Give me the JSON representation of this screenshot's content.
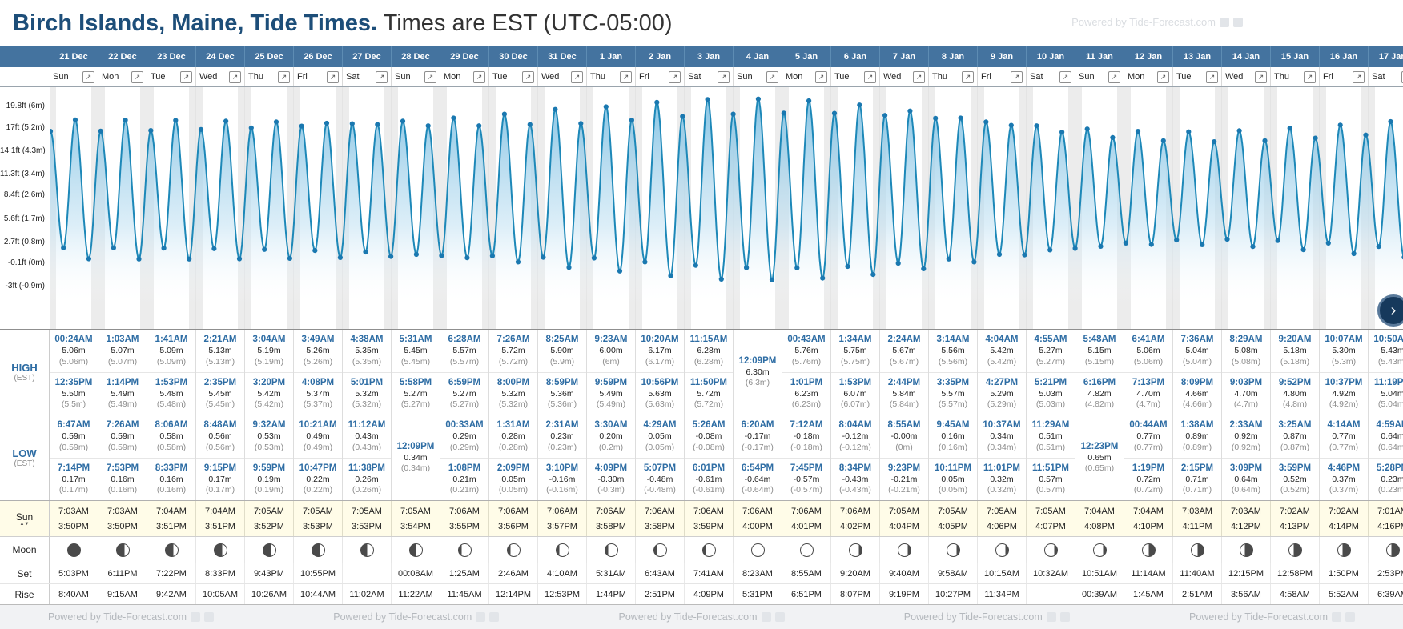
{
  "header": {
    "title_bold": "Birch Islands, Maine, Tide Times.",
    "title_rest": " Times are EST (UTC-05:00)",
    "watermark": "Powered by Tide-Forecast.com"
  },
  "controls": {
    "expand": "↗",
    "next": "›"
  },
  "row_labels": {
    "high": "HIGH",
    "high_tz": "(EST)",
    "low": "LOW",
    "low_tz": "(EST)",
    "sun": "Sun",
    "sun_arrows": "▲▼",
    "moon": "Moon",
    "set": "Set",
    "rise": "Rise"
  },
  "footer": {
    "text": "Powered by Tide-Forecast.com",
    "repeat": 5
  },
  "chart": {
    "type": "area",
    "unit": "m",
    "y_labels": [
      {
        "text": "19.8ft (6m)",
        "v": 6
      },
      {
        "text": "17ft (5.2m)",
        "v": 5.2
      },
      {
        "text": "14.1ft (4.3m)",
        "v": 4.3
      },
      {
        "text": "11.3ft (3.4m)",
        "v": 3.4
      },
      {
        "text": "8.4ft (2.6m)",
        "v": 2.6
      },
      {
        "text": "5.6ft (1.7m)",
        "v": 1.7
      },
      {
        "text": "2.7ft (0.8m)",
        "v": 0.8
      },
      {
        "text": "-0.1ft (0m)",
        "v": 0
      },
      {
        "text": "-3ft (-0.9m)",
        "v": -0.9
      }
    ]
  },
  "days": [
    {
      "date": "21 Dec",
      "dow": "Sun",
      "highs": [
        {
          "t": "00:24AM",
          "v": 5.06
        },
        {
          "t": "12:35PM",
          "v": 5.5
        }
      ],
      "lows": [
        {
          "t": "6:47AM",
          "v": 0.59
        },
        {
          "t": "7:14PM",
          "v": 0.17
        }
      ],
      "sun": [
        "7:03AM",
        "3:50PM"
      ],
      "moon": "new",
      "set": "5:03PM",
      "rise": "8:40AM"
    },
    {
      "date": "22 Dec",
      "dow": "Mon",
      "highs": [
        {
          "t": "1:03AM",
          "v": 5.07
        },
        {
          "t": "1:14PM",
          "v": 5.49
        }
      ],
      "lows": [
        {
          "t": "7:26AM",
          "v": 0.59
        },
        {
          "t": "7:53PM",
          "v": 0.16
        }
      ],
      "sun": [
        "7:03AM",
        "3:50PM"
      ],
      "moon": "waxing-crescent",
      "set": "6:11PM",
      "rise": "9:15AM"
    },
    {
      "date": "23 Dec",
      "dow": "Tue",
      "highs": [
        {
          "t": "1:41AM",
          "v": 5.09
        },
        {
          "t": "1:53PM",
          "v": 5.48
        }
      ],
      "lows": [
        {
          "t": "8:06AM",
          "v": 0.58
        },
        {
          "t": "8:33PM",
          "v": 0.16
        }
      ],
      "sun": [
        "7:04AM",
        "3:51PM"
      ],
      "moon": "waxing-crescent",
      "set": "7:22PM",
      "rise": "9:42AM"
    },
    {
      "date": "24 Dec",
      "dow": "Wed",
      "highs": [
        {
          "t": "2:21AM",
          "v": 5.13
        },
        {
          "t": "2:35PM",
          "v": 5.45
        }
      ],
      "lows": [
        {
          "t": "8:48AM",
          "v": 0.56
        },
        {
          "t": "9:15PM",
          "v": 0.17
        }
      ],
      "sun": [
        "7:04AM",
        "3:51PM"
      ],
      "moon": "waxing-crescent",
      "set": "8:33PM",
      "rise": "10:05AM"
    },
    {
      "date": "25 Dec",
      "dow": "Thu",
      "highs": [
        {
          "t": "3:04AM",
          "v": 5.19
        },
        {
          "t": "3:20PM",
          "v": 5.42
        }
      ],
      "lows": [
        {
          "t": "9:32AM",
          "v": 0.53
        },
        {
          "t": "9:59PM",
          "v": 0.19
        }
      ],
      "sun": [
        "7:05AM",
        "3:52PM"
      ],
      "moon": "waxing-crescent",
      "set": "9:43PM",
      "rise": "10:26AM"
    },
    {
      "date": "26 Dec",
      "dow": "Fri",
      "highs": [
        {
          "t": "3:49AM",
          "v": 5.26
        },
        {
          "t": "4:08PM",
          "v": 5.37
        }
      ],
      "lows": [
        {
          "t": "10:21AM",
          "v": 0.49
        },
        {
          "t": "10:47PM",
          "v": 0.22
        }
      ],
      "sun": [
        "7:05AM",
        "3:53PM"
      ],
      "moon": "waxing-crescent",
      "set": "10:55PM",
      "rise": "10:44AM"
    },
    {
      "date": "27 Dec",
      "dow": "Sat",
      "highs": [
        {
          "t": "4:38AM",
          "v": 5.35
        },
        {
          "t": "5:01PM",
          "v": 5.32
        }
      ],
      "lows": [
        {
          "t": "11:12AM",
          "v": 0.43
        },
        {
          "t": "11:38PM",
          "v": 0.26
        }
      ],
      "sun": [
        "7:05AM",
        "3:53PM"
      ],
      "moon": "first-quarter",
      "set": "",
      "rise": "11:02AM"
    },
    {
      "date": "28 Dec",
      "dow": "Sun",
      "highs": [
        {
          "t": "5:31AM",
          "v": 5.45
        },
        {
          "t": "5:58PM",
          "v": 5.27
        }
      ],
      "lows": [
        {
          "t": "12:09PM",
          "v": 0.34
        }
      ],
      "sun": [
        "7:05AM",
        "3:54PM"
      ],
      "moon": "first-quarter",
      "set": "00:08AM",
      "rise": "11:22AM"
    },
    {
      "date": "29 Dec",
      "dow": "Mon",
      "highs": [
        {
          "t": "6:28AM",
          "v": 5.57
        },
        {
          "t": "6:59PM",
          "v": 5.27
        }
      ],
      "lows": [
        {
          "t": "00:33AM",
          "v": 0.29
        },
        {
          "t": "1:08PM",
          "v": 0.21
        }
      ],
      "sun": [
        "7:06AM",
        "3:55PM"
      ],
      "moon": "waxing-gibbous",
      "set": "1:25AM",
      "rise": "11:45AM"
    },
    {
      "date": "30 Dec",
      "dow": "Tue",
      "highs": [
        {
          "t": "7:26AM",
          "v": 5.72
        },
        {
          "t": "8:00PM",
          "v": 5.32
        }
      ],
      "lows": [
        {
          "t": "1:31AM",
          "v": 0.28
        },
        {
          "t": "2:09PM",
          "v": 0.05
        }
      ],
      "sun": [
        "7:06AM",
        "3:56PM"
      ],
      "moon": "waxing-gibbous",
      "set": "2:46AM",
      "rise": "12:14PM"
    },
    {
      "date": "31 Dec",
      "dow": "Wed",
      "highs": [
        {
          "t": "8:25AM",
          "v": 5.9
        },
        {
          "t": "8:59PM",
          "v": 5.36
        }
      ],
      "lows": [
        {
          "t": "2:31AM",
          "v": 0.23
        },
        {
          "t": "3:10PM",
          "v": -0.16
        }
      ],
      "sun": [
        "7:06AM",
        "3:57PM"
      ],
      "moon": "waxing-gibbous",
      "set": "4:10AM",
      "rise": "12:53PM"
    },
    {
      "date": "1 Jan",
      "dow": "Thu",
      "highs": [
        {
          "t": "9:23AM",
          "v": 6.0
        },
        {
          "t": "9:59PM",
          "v": 5.49
        }
      ],
      "lows": [
        {
          "t": "3:30AM",
          "v": 0.2
        },
        {
          "t": "4:09PM",
          "v": -0.3
        }
      ],
      "sun": [
        "7:06AM",
        "3:58PM"
      ],
      "moon": "waxing-gibbous",
      "set": "5:31AM",
      "rise": "1:44PM"
    },
    {
      "date": "2 Jan",
      "dow": "Fri",
      "highs": [
        {
          "t": "10:20AM",
          "v": 6.17
        },
        {
          "t": "10:56PM",
          "v": 5.63
        }
      ],
      "lows": [
        {
          "t": "4:29AM",
          "v": 0.05
        },
        {
          "t": "5:07PM",
          "v": -0.48
        }
      ],
      "sun": [
        "7:06AM",
        "3:58PM"
      ],
      "moon": "waxing-gibbous",
      "set": "6:43AM",
      "rise": "2:51PM"
    },
    {
      "date": "3 Jan",
      "dow": "Sat",
      "highs": [
        {
          "t": "11:15AM",
          "v": 6.28
        },
        {
          "t": "11:50PM",
          "v": 5.72
        }
      ],
      "lows": [
        {
          "t": "5:26AM",
          "v": -0.08
        },
        {
          "t": "6:01PM",
          "v": -0.61
        }
      ],
      "sun": [
        "7:06AM",
        "3:59PM"
      ],
      "moon": "waxing-gibbous",
      "set": "7:41AM",
      "rise": "4:09PM"
    },
    {
      "date": "4 Jan",
      "dow": "Sun",
      "highs": [
        {
          "t": "12:09PM",
          "v": 6.3
        }
      ],
      "lows": [
        {
          "t": "6:20AM",
          "v": -0.17
        },
        {
          "t": "6:54PM",
          "v": -0.64
        }
      ],
      "sun": [
        "7:06AM",
        "4:00PM"
      ],
      "moon": "full",
      "set": "8:23AM",
      "rise": "5:31PM"
    },
    {
      "date": "5 Jan",
      "dow": "Mon",
      "highs": [
        {
          "t": "00:43AM",
          "v": 5.76
        },
        {
          "t": "1:01PM",
          "v": 6.23
        }
      ],
      "lows": [
        {
          "t": "7:12AM",
          "v": -0.18
        },
        {
          "t": "7:45PM",
          "v": -0.57
        }
      ],
      "sun": [
        "7:06AM",
        "4:01PM"
      ],
      "moon": "full",
      "set": "8:55AM",
      "rise": "6:51PM"
    },
    {
      "date": "6 Jan",
      "dow": "Tue",
      "highs": [
        {
          "t": "1:34AM",
          "v": 5.75
        },
        {
          "t": "1:53PM",
          "v": 6.07
        }
      ],
      "lows": [
        {
          "t": "8:04AM",
          "v": -0.12
        },
        {
          "t": "8:34PM",
          "v": -0.43
        }
      ],
      "sun": [
        "7:06AM",
        "4:02PM"
      ],
      "moon": "waning-gibbous",
      "set": "9:20AM",
      "rise": "8:07PM"
    },
    {
      "date": "7 Jan",
      "dow": "Wed",
      "highs": [
        {
          "t": "2:24AM",
          "v": 5.67
        },
        {
          "t": "2:44PM",
          "v": 5.84
        }
      ],
      "lows": [
        {
          "t": "8:55AM",
          "v": -0.001
        },
        {
          "t": "9:23PM",
          "v": -0.21
        }
      ],
      "sun": [
        "7:05AM",
        "4:04PM"
      ],
      "moon": "waning-gibbous",
      "set": "9:40AM",
      "rise": "9:19PM"
    },
    {
      "date": "8 Jan",
      "dow": "Thu",
      "highs": [
        {
          "t": "3:14AM",
          "v": 5.56
        },
        {
          "t": "3:35PM",
          "v": 5.57
        }
      ],
      "lows": [
        {
          "t": "9:45AM",
          "v": 0.16
        },
        {
          "t": "10:11PM",
          "v": 0.05
        }
      ],
      "sun": [
        "7:05AM",
        "4:05PM"
      ],
      "moon": "waning-gibbous",
      "set": "9:58AM",
      "rise": "10:27PM"
    },
    {
      "date": "9 Jan",
      "dow": "Fri",
      "highs": [
        {
          "t": "4:04AM",
          "v": 5.42
        },
        {
          "t": "4:27PM",
          "v": 5.29
        }
      ],
      "lows": [
        {
          "t": "10:37AM",
          "v": 0.34
        },
        {
          "t": "11:01PM",
          "v": 0.32
        }
      ],
      "sun": [
        "7:05AM",
        "4:06PM"
      ],
      "moon": "waning-gibbous",
      "set": "10:15AM",
      "rise": "11:34PM"
    },
    {
      "date": "10 Jan",
      "dow": "Sat",
      "highs": [
        {
          "t": "4:55AM",
          "v": 5.27
        },
        {
          "t": "5:21PM",
          "v": 5.03
        }
      ],
      "lows": [
        {
          "t": "11:29AM",
          "v": 0.51
        },
        {
          "t": "11:51PM",
          "v": 0.57
        }
      ],
      "sun": [
        "7:05AM",
        "4:07PM"
      ],
      "moon": "waning-gibbous",
      "set": "10:32AM",
      "rise": ""
    },
    {
      "date": "11 Jan",
      "dow": "Sun",
      "highs": [
        {
          "t": "5:48AM",
          "v": 5.15
        },
        {
          "t": "6:16PM",
          "v": 4.82
        }
      ],
      "lows": [
        {
          "t": "12:23PM",
          "v": 0.65
        }
      ],
      "sun": [
        "7:04AM",
        "4:08PM"
      ],
      "moon": "waning-gibbous",
      "set": "10:51AM",
      "rise": "00:39AM"
    },
    {
      "date": "12 Jan",
      "dow": "Mon",
      "highs": [
        {
          "t": "6:41AM",
          "v": 5.06
        },
        {
          "t": "7:13PM",
          "v": 4.7
        }
      ],
      "lows": [
        {
          "t": "00:44AM",
          "v": 0.77
        },
        {
          "t": "1:19PM",
          "v": 0.72
        }
      ],
      "sun": [
        "7:04AM",
        "4:10PM"
      ],
      "moon": "last-quarter",
      "set": "11:14AM",
      "rise": "1:45AM"
    },
    {
      "date": "13 Jan",
      "dow": "Tue",
      "highs": [
        {
          "t": "7:36AM",
          "v": 5.04
        },
        {
          "t": "8:09PM",
          "v": 4.66
        }
      ],
      "lows": [
        {
          "t": "1:38AM",
          "v": 0.89
        },
        {
          "t": "2:15PM",
          "v": 0.71
        }
      ],
      "sun": [
        "7:03AM",
        "4:11PM"
      ],
      "moon": "last-quarter",
      "set": "11:40AM",
      "rise": "2:51AM"
    },
    {
      "date": "14 Jan",
      "dow": "Wed",
      "highs": [
        {
          "t": "8:29AM",
          "v": 5.08
        },
        {
          "t": "9:03PM",
          "v": 4.7
        }
      ],
      "lows": [
        {
          "t": "2:33AM",
          "v": 0.92
        },
        {
          "t": "3:09PM",
          "v": 0.64
        }
      ],
      "sun": [
        "7:03AM",
        "4:12PM"
      ],
      "moon": "waning-crescent",
      "set": "12:15PM",
      "rise": "3:56AM"
    },
    {
      "date": "15 Jan",
      "dow": "Thu",
      "highs": [
        {
          "t": "9:20AM",
          "v": 5.18
        },
        {
          "t": "9:52PM",
          "v": 4.8
        }
      ],
      "lows": [
        {
          "t": "3:25AM",
          "v": 0.87
        },
        {
          "t": "3:59PM",
          "v": 0.52
        }
      ],
      "sun": [
        "7:02AM",
        "4:13PM"
      ],
      "moon": "waning-crescent",
      "set": "12:58PM",
      "rise": "4:58AM"
    },
    {
      "date": "16 Jan",
      "dow": "Fri",
      "highs": [
        {
          "t": "10:07AM",
          "v": 5.3
        },
        {
          "t": "10:37PM",
          "v": 4.92
        }
      ],
      "lows": [
        {
          "t": "4:14AM",
          "v": 0.77
        },
        {
          "t": "4:46PM",
          "v": 0.37
        }
      ],
      "sun": [
        "7:02AM",
        "4:14PM"
      ],
      "moon": "waning-crescent",
      "set": "1:50PM",
      "rise": "5:52AM"
    },
    {
      "date": "17 Jan",
      "dow": "Sat",
      "highs": [
        {
          "t": "10:50AM",
          "v": 5.43
        },
        {
          "t": "11:19PM",
          "v": 5.04
        }
      ],
      "lows": [
        {
          "t": "4:59AM",
          "v": 0.64
        },
        {
          "t": "5:28PM",
          "v": 0.23
        }
      ],
      "sun": [
        "7:01AM",
        "4:16PM"
      ],
      "moon": "waning-crescent",
      "set": "2:53PM",
      "rise": "6:39AM"
    }
  ]
}
